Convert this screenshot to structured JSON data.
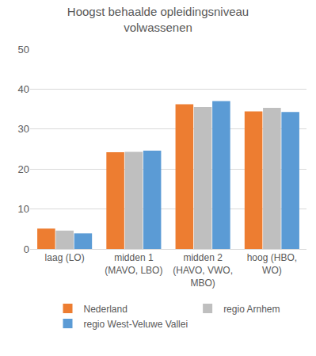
{
  "chart_data": {
    "type": "bar",
    "title": "Hoogst behaalde opleidingsniveau volwassenen",
    "categories": [
      "laag (LO)",
      "midden 1 (MAVO, LBO)",
      "midden 2 (HAVO, VWO, MBO)",
      "hoog (HBO, WO)"
    ],
    "series": [
      {
        "name": "Nederland",
        "color": "#ed7d31",
        "values": [
          5.1,
          24.2,
          36.2,
          34.4
        ]
      },
      {
        "name": "regio Arnhem",
        "color": "#bfbfbf",
        "values": [
          4.6,
          24.3,
          35.5,
          35.3
        ]
      },
      {
        "name": "regio West-Veluwe Vallei",
        "color": "#5b9bd5",
        "values": [
          3.9,
          24.6,
          37.0,
          34.3
        ]
      }
    ],
    "ylim": [
      0,
      50
    ],
    "yticks": [
      0,
      10,
      20,
      30,
      40,
      50
    ],
    "grid": true,
    "legend": "bottom"
  }
}
